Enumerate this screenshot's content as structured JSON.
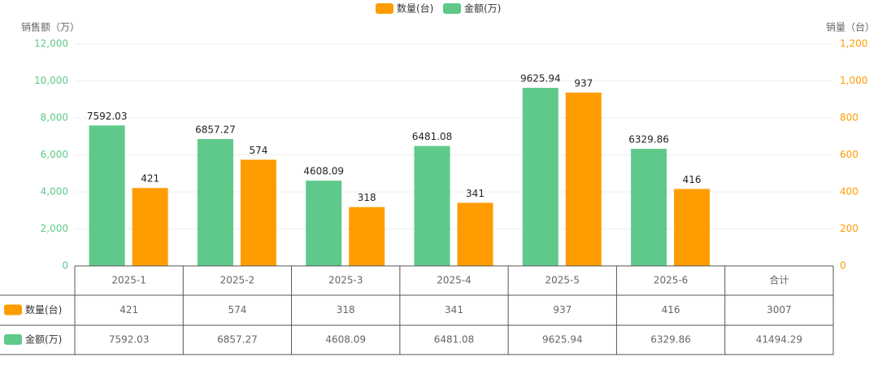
{
  "chart_data": {
    "type": "bar",
    "y_axis_title": "销售额（万）",
    "y2_axis_title": "销量（台）",
    "categories": [
      "2025-1",
      "2025-2",
      "2025-3",
      "2025-4",
      "2025-5",
      "2025-6"
    ],
    "series": [
      {
        "name": "数量(台)",
        "color": "#ff9c00",
        "axis": "y2",
        "values": [
          421,
          574,
          318,
          341,
          937,
          416
        ]
      },
      {
        "name": "金额(万)",
        "color": "#5ec98a",
        "axis": "y",
        "values": [
          7592.03,
          6857.27,
          4608.09,
          6481.08,
          9625.94,
          6329.86
        ]
      }
    ],
    "ylim": [
      0,
      12000
    ],
    "yticks": [
      0,
      {
        "value": 2000,
        "label": "2,000"
      },
      {
        "value": 4000,
        "label": "4,000"
      },
      {
        "value": 6000,
        "label": "6,000"
      },
      {
        "value": 8000,
        "label": "8,000"
      },
      {
        "value": 10000,
        "label": "10,000"
      },
      {
        "value": 12000,
        "label": "12,000"
      }
    ],
    "y2lim": [
      0,
      1200
    ],
    "y2ticks": [
      0,
      200,
      400,
      600,
      800,
      {
        "value": 1000,
        "label": "1,000"
      },
      {
        "value": 1200,
        "label": "1,200"
      }
    ],
    "grid": true,
    "legend": "top",
    "table": {
      "total_label": "合计",
      "totals": [
        3007,
        41494.29
      ]
    }
  }
}
